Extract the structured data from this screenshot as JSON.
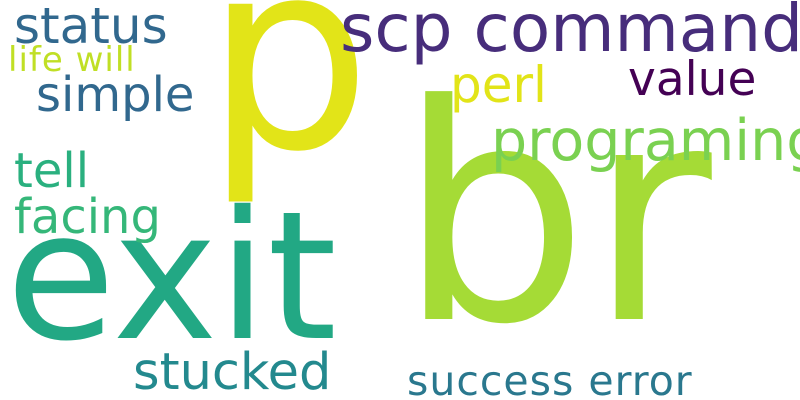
{
  "words": [
    {
      "text": "br",
      "color": "#a5db36"
    },
    {
      "text": "p",
      "color": "#e2e418"
    },
    {
      "text": "exit",
      "color": "#22a884"
    },
    {
      "text": "scp command",
      "color": "#472d7b"
    },
    {
      "text": "status",
      "color": "#31688e"
    },
    {
      "text": "value",
      "color": "#440154"
    },
    {
      "text": "simple",
      "color": "#31688e"
    },
    {
      "text": "perl",
      "color": "#e2e418"
    },
    {
      "text": "programing",
      "color": "#7ad151"
    },
    {
      "text": "life will",
      "color": "#c0df25"
    },
    {
      "text": "tell",
      "color": "#2ab07f"
    },
    {
      "text": "facing",
      "color": "#35b779"
    },
    {
      "text": "stucked",
      "color": "#23898e"
    },
    {
      "text": "success error",
      "color": "#2a788e"
    }
  ]
}
